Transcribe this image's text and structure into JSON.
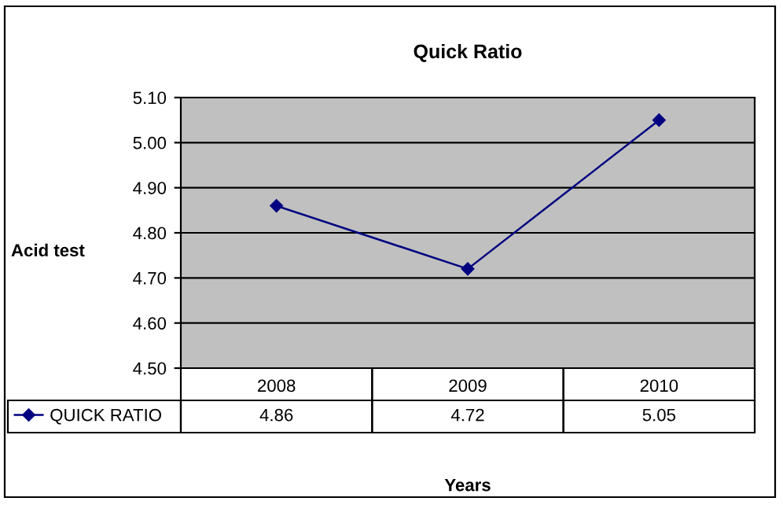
{
  "chart_data": {
    "type": "line",
    "title": "Quick Ratio",
    "xlabel": "Years",
    "ylabel": "Acid test",
    "categories": [
      "2008",
      "2009",
      "2010"
    ],
    "series": [
      {
        "name": "QUICK RATIO",
        "color": "#000080",
        "values": [
          4.86,
          4.72,
          5.05
        ]
      }
    ],
    "ylim": [
      4.5,
      5.1
    ],
    "yticks": [
      {
        "value": 4.5,
        "label": "4.50"
      },
      {
        "value": 4.6,
        "label": "4.60"
      },
      {
        "value": 4.7,
        "label": "4.70"
      },
      {
        "value": 4.8,
        "label": "4.80"
      },
      {
        "value": 4.9,
        "label": "4.90"
      },
      {
        "value": 5.0,
        "label": "5.00"
      },
      {
        "value": 5.1,
        "label": "5.10"
      }
    ],
    "grid": "y",
    "legend": "bottom left",
    "marker": "diamond",
    "line_style": "solid",
    "data_labels": true
  }
}
